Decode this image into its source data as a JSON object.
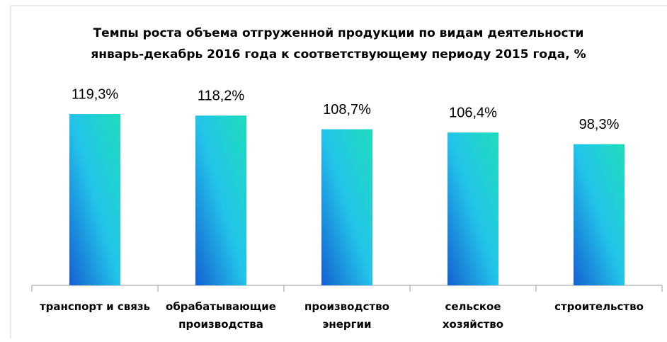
{
  "chart_data": {
    "type": "bar",
    "title": "Темпы роста объема отгруженной продукции по видам деятельности",
    "subtitle": "январь-декабрь 2016 года к соответствующему периоду 2015 года, %",
    "categories": [
      "транспорт и связь",
      "обрабатывающие\nпроизводства",
      "производство\nэнергии",
      "сельское\nхозяйство",
      "строительство"
    ],
    "values": [
      119.3,
      118.2,
      108.7,
      106.4,
      98.3
    ],
    "value_labels": [
      "119,3%",
      "118,2%",
      "108,7%",
      "106,4%",
      "98,3%"
    ],
    "gradient": [
      "#1560d0",
      "#22c4ea",
      "#1fdcbc"
    ],
    "ylim": [
      0,
      140
    ]
  }
}
